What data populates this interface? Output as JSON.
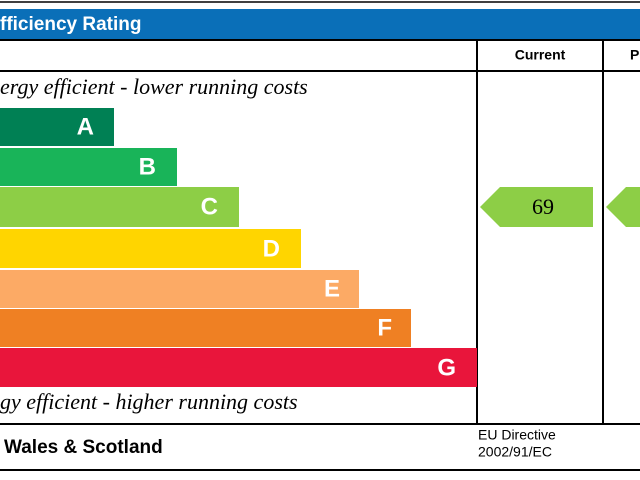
{
  "header": {
    "title": "fficiency Rating"
  },
  "columns": [
    "Current",
    "P"
  ],
  "top_note": "ergy efficient - lower running costs",
  "bands": [
    "A",
    "B",
    "C",
    "D",
    "E",
    "F",
    "G"
  ],
  "current_rating": 69,
  "bottom_note": "gy efficient - higher running costs",
  "footer": {
    "region": "Wales & Scotland",
    "directive": [
      "EU Directive",
      "2002/91/EC"
    ]
  }
}
